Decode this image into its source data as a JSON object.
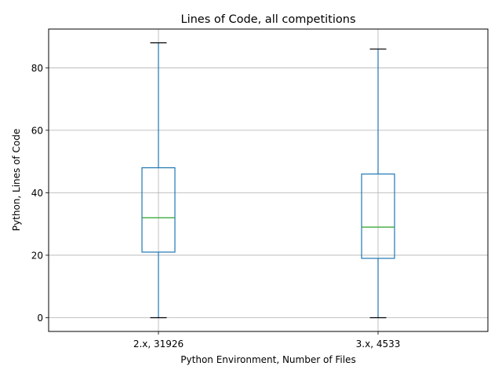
{
  "chart_data": {
    "type": "box",
    "title": "Lines of Code, all competitions",
    "xlabel": "Python Environment, Number of Files",
    "ylabel": "Python, Lines of Code",
    "ylim": [
      -4.4,
      92.4
    ],
    "yticks": [
      0,
      20,
      40,
      60,
      80
    ],
    "grid": true,
    "categories": [
      "2.x, 31926",
      "3.x, 4533"
    ],
    "boxes": [
      {
        "category": "2.x, 31926",
        "whisker_low": 0,
        "q1": 21,
        "median": 32,
        "q3": 48,
        "whisker_high": 88
      },
      {
        "category": "3.x, 4533",
        "whisker_low": 0,
        "q1": 19,
        "median": 29,
        "q3": 46,
        "whisker_high": 86
      }
    ],
    "colors": {
      "box": "#1f77b4",
      "median": "#2ca02c",
      "cap": "#000000",
      "grid": "#b0b0b0"
    }
  }
}
